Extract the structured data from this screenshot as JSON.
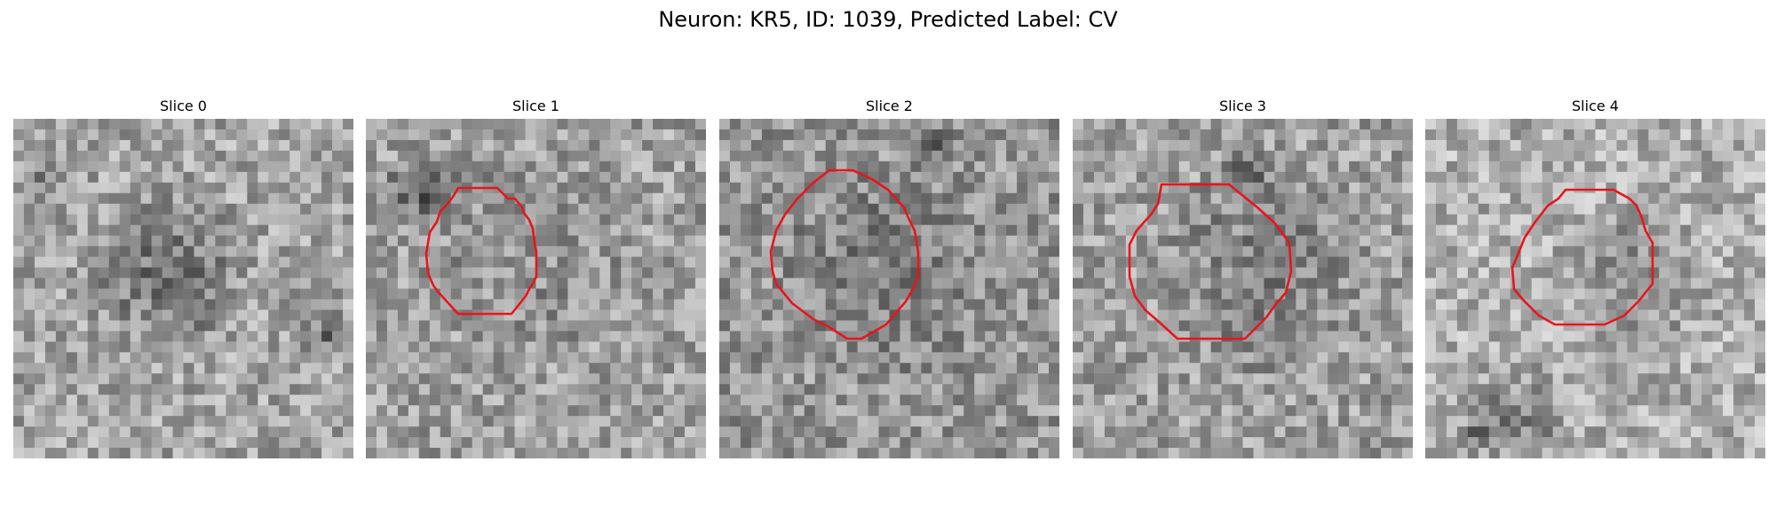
{
  "figure": {
    "title": "Neuron: KR5, ID: 1039, Predicted Label: CV"
  },
  "panels": [
    {
      "title": "Slice 0",
      "has_contour": false
    },
    {
      "title": "Slice 1",
      "has_contour": true
    },
    {
      "title": "Slice 2",
      "has_contour": true
    },
    {
      "title": "Slice 3",
      "has_contour": true
    },
    {
      "title": "Slice 4",
      "has_contour": true
    }
  ],
  "colors": {
    "contour": "#e8151b",
    "background": "#ffffff"
  }
}
